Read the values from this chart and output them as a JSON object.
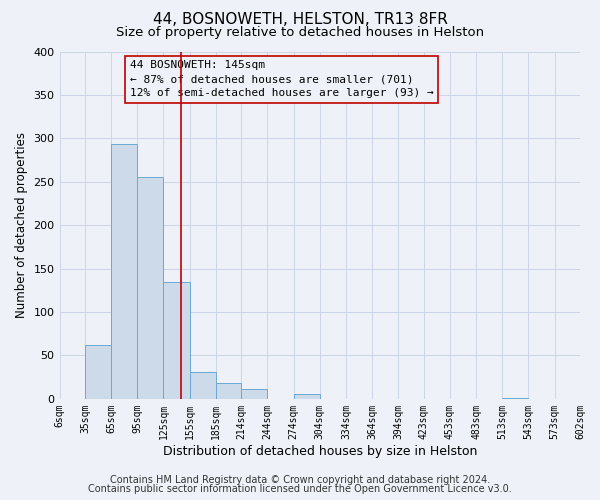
{
  "title": "44, BOSNOWETH, HELSTON, TR13 8FR",
  "subtitle": "Size of property relative to detached houses in Helston",
  "xlabel": "Distribution of detached houses by size in Helston",
  "ylabel": "Number of detached properties",
  "bar_left_edges": [
    6,
    35,
    65,
    95,
    125,
    155,
    185,
    214,
    244,
    274,
    304,
    334,
    364,
    394,
    423,
    453,
    483,
    513,
    543,
    573
  ],
  "bar_heights": [
    0,
    62,
    293,
    255,
    135,
    31,
    18,
    11,
    0,
    5,
    0,
    0,
    0,
    0,
    0,
    0,
    0,
    1,
    0,
    0
  ],
  "bar_widths": [
    29,
    30,
    30,
    30,
    30,
    30,
    29,
    30,
    30,
    30,
    30,
    30,
    30,
    29,
    30,
    30,
    30,
    30,
    30,
    29
  ],
  "bar_color": "#cddaea",
  "bar_edgecolor": "#6aaad4",
  "ylim": [
    0,
    400
  ],
  "yticks": [
    0,
    50,
    100,
    150,
    200,
    250,
    300,
    350,
    400
  ],
  "xtick_labels": [
    "6sqm",
    "35sqm",
    "65sqm",
    "95sqm",
    "125sqm",
    "155sqm",
    "185sqm",
    "214sqm",
    "244sqm",
    "274sqm",
    "304sqm",
    "334sqm",
    "364sqm",
    "394sqm",
    "423sqm",
    "453sqm",
    "483sqm",
    "513sqm",
    "543sqm",
    "573sqm",
    "602sqm"
  ],
  "xtick_positions": [
    6,
    35,
    65,
    95,
    125,
    155,
    185,
    214,
    244,
    274,
    304,
    334,
    364,
    394,
    423,
    453,
    483,
    513,
    543,
    573,
    602
  ],
  "vline_x": 145,
  "vline_color": "#c00000",
  "annotation_line1": "44 BOSNOWETH: 145sqm",
  "annotation_line2": "← 87% of detached houses are smaller (701)",
  "annotation_line3": "12% of semi-detached houses are larger (93) →",
  "box_edgecolor": "#c00000",
  "grid_color": "#ccd6e8",
  "bg_color": "#eef2f8",
  "footer_line1": "Contains HM Land Registry data © Crown copyright and database right 2024.",
  "footer_line2": "Contains public sector information licensed under the Open Government Licence v3.0.",
  "title_fontsize": 11,
  "subtitle_fontsize": 9.5,
  "footer_fontsize": 7,
  "annot_fontsize": 8,
  "ylabel_fontsize": 8.5,
  "xlabel_fontsize": 9
}
